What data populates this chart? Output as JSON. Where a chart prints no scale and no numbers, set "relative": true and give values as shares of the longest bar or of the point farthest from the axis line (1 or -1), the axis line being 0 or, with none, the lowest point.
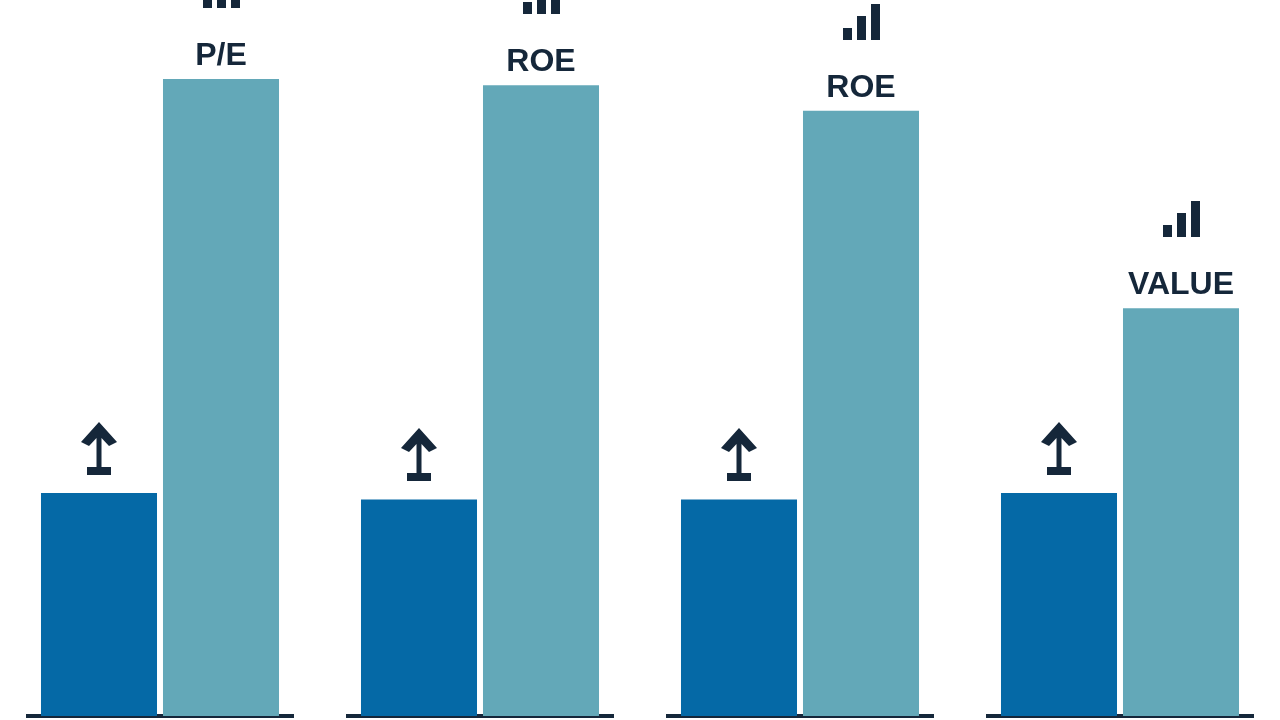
{
  "chart_data": {
    "type": "bar",
    "relative": true,
    "categories": [
      "P/E",
      "ROE",
      "ROE",
      "VALUE"
    ],
    "series": [
      {
        "color": "#0569a6",
        "values": [
          0.35,
          0.34,
          0.34,
          0.35
        ]
      },
      {
        "color": "#63a8b8",
        "values": [
          1,
          0.99,
          0.95,
          0.64
        ]
      }
    ]
  }
}
